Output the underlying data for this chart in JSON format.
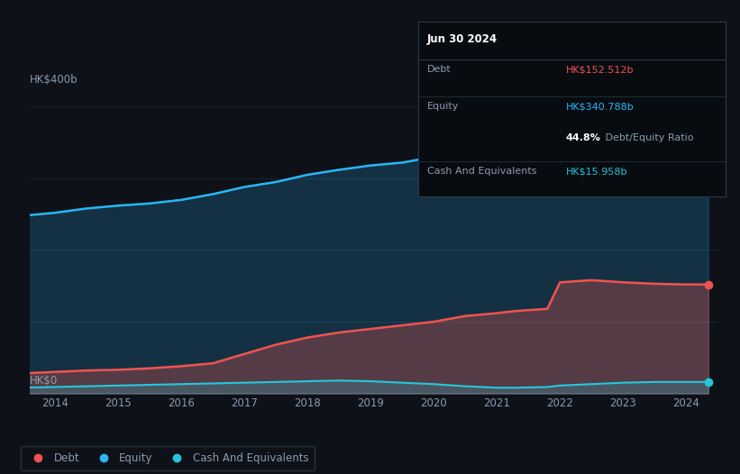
{
  "background_color": "#0e1117",
  "plot_bg_color": "#0e1117",
  "ylabel_top": "HK$400b",
  "ylabel_bottom": "HK$0",
  "years": [
    2013.5,
    2014.0,
    2014.5,
    2015.0,
    2015.5,
    2016.0,
    2016.5,
    2017.0,
    2017.5,
    2018.0,
    2018.5,
    2019.0,
    2019.5,
    2020.0,
    2020.5,
    2021.0,
    2021.3,
    2021.8,
    2022.0,
    2022.5,
    2023.0,
    2023.5,
    2024.0,
    2024.35
  ],
  "equity": [
    248,
    252,
    258,
    262,
    265,
    270,
    278,
    288,
    295,
    305,
    312,
    318,
    322,
    330,
    338,
    342,
    348,
    352,
    350,
    345,
    340,
    338,
    337,
    341
  ],
  "debt": [
    28,
    30,
    32,
    33,
    35,
    38,
    42,
    55,
    68,
    78,
    85,
    90,
    95,
    100,
    108,
    112,
    115,
    118,
    155,
    158,
    155,
    153,
    152,
    152
  ],
  "cash": [
    8,
    9,
    10,
    11,
    12,
    13,
    14,
    15,
    16,
    17,
    18,
    17,
    15,
    13,
    10,
    8,
    8,
    9,
    11,
    13,
    15,
    16,
    16,
    16
  ],
  "equity_color": "#29b6f6",
  "debt_color": "#ef5350",
  "cash_color": "#26c6da",
  "grid_color": "#1a2535",
  "text_color": "#8a9bb0",
  "tooltip_bg": "#080c10",
  "tooltip_border": "#2a3a4a",
  "annotation_debt": "HK$152.512b",
  "annotation_equity": "HK$340.788b",
  "annotation_cash": "HK$15.958b",
  "annotation_ratio": "44.8%",
  "tooltip_title": "Jun 30 2024",
  "legend_labels": [
    "Debt",
    "Equity",
    "Cash And Equivalents"
  ],
  "x_ticks": [
    2014,
    2015,
    2016,
    2017,
    2018,
    2019,
    2020,
    2021,
    2022,
    2023,
    2024
  ],
  "ylim": [
    0,
    410
  ],
  "scale": 400
}
